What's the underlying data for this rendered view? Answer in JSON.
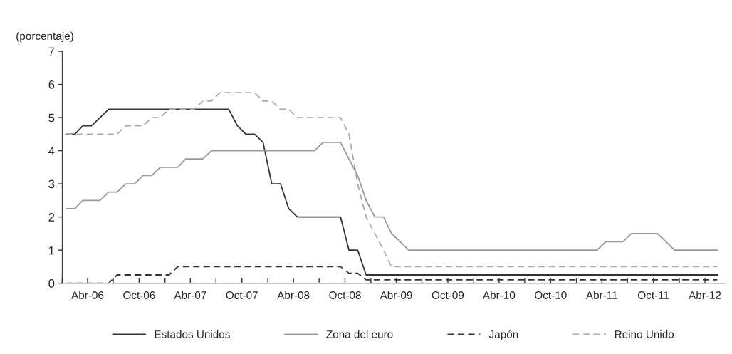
{
  "chart_data": {
    "type": "line",
    "ylabel": "(porcentaje)",
    "xlim": [
      "2006-01-01",
      "2012-06-10"
    ],
    "ylim": [
      0,
      7
    ],
    "yticks": [
      0,
      1,
      2,
      3,
      4,
      5,
      6,
      7
    ],
    "xticks": [
      {
        "value": "2006-01-01",
        "label": null
      },
      {
        "value": "2006-04-01",
        "label": "Abr-06"
      },
      {
        "value": "2006-07-01",
        "label": null
      },
      {
        "value": "2006-10-01",
        "label": "Oct-06"
      },
      {
        "value": "2007-01-01",
        "label": null
      },
      {
        "value": "2007-04-01",
        "label": "Abr-07"
      },
      {
        "value": "2007-07-01",
        "label": null
      },
      {
        "value": "2007-10-01",
        "label": "Oct-07"
      },
      {
        "value": "2008-01-01",
        "label": null
      },
      {
        "value": "2008-04-01",
        "label": "Abr-08"
      },
      {
        "value": "2008-07-01",
        "label": null
      },
      {
        "value": "2008-10-01",
        "label": "Oct-08"
      },
      {
        "value": "2009-01-01",
        "label": null
      },
      {
        "value": "2009-04-01",
        "label": "Abr-09"
      },
      {
        "value": "2009-07-01",
        "label": null
      },
      {
        "value": "2009-10-01",
        "label": "Oct-09"
      },
      {
        "value": "2010-01-01",
        "label": null
      },
      {
        "value": "2010-04-01",
        "label": "Abr-10"
      },
      {
        "value": "2010-07-01",
        "label": null
      },
      {
        "value": "2010-10-01",
        "label": "Oct-10"
      },
      {
        "value": "2011-01-01",
        "label": null
      },
      {
        "value": "2011-04-01",
        "label": "Abr-11"
      },
      {
        "value": "2011-07-01",
        "label": null
      },
      {
        "value": "2011-10-01",
        "label": "Oct-11"
      },
      {
        "value": "2012-01-01",
        "label": null
      },
      {
        "value": "2012-04-01",
        "label": "Abr-12"
      }
    ],
    "grid": false,
    "legend": "bottom",
    "marker": "none",
    "series": [
      {
        "name": "Estados Unidos",
        "color": "#333333",
        "line_style": "solid",
        "x": [
          "2006-01-15",
          "2006-02-15",
          "2006-03-15",
          "2006-04-15",
          "2006-06-15",
          "2007-08-15",
          "2007-09-15",
          "2007-10-15",
          "2007-11-15",
          "2007-12-15",
          "2008-01-15",
          "2008-02-15",
          "2008-03-15",
          "2008-04-15",
          "2008-09-15",
          "2008-10-15",
          "2008-11-15",
          "2008-12-15",
          "2012-05-15"
        ],
        "values": [
          4.5,
          4.5,
          4.75,
          4.75,
          5.25,
          5.25,
          4.75,
          4.5,
          4.5,
          4.25,
          3.0,
          3.0,
          2.25,
          2.0,
          2.0,
          1.0,
          1.0,
          0.25,
          0.25
        ]
      },
      {
        "name": "Zona del euro",
        "color": "#999999",
        "line_style": "solid",
        "x": [
          "2006-01-15",
          "2006-02-15",
          "2006-03-15",
          "2006-05-15",
          "2006-06-15",
          "2006-07-15",
          "2006-08-15",
          "2006-09-15",
          "2006-10-15",
          "2006-11-15",
          "2006-12-15",
          "2007-02-15",
          "2007-03-15",
          "2007-05-15",
          "2007-06-15",
          "2008-06-15",
          "2008-07-15",
          "2008-09-15",
          "2008-10-15",
          "2008-11-15",
          "2008-12-15",
          "2009-01-15",
          "2009-02-15",
          "2009-03-15",
          "2009-04-15",
          "2009-05-15",
          "2011-03-15",
          "2011-04-15",
          "2011-06-15",
          "2011-07-15",
          "2011-10-15",
          "2011-11-15",
          "2011-12-15",
          "2012-05-15"
        ],
        "values": [
          2.25,
          2.25,
          2.5,
          2.5,
          2.75,
          2.75,
          3.0,
          3.0,
          3.25,
          3.25,
          3.5,
          3.5,
          3.75,
          3.75,
          4.0,
          4.0,
          4.25,
          4.25,
          3.75,
          3.25,
          2.5,
          2.0,
          2.0,
          1.5,
          1.25,
          1.0,
          1.0,
          1.25,
          1.25,
          1.5,
          1.5,
          1.25,
          1.0,
          1.0
        ]
      },
      {
        "name": "Japón",
        "color": "#333333",
        "line_style": "dashed",
        "x": [
          "2006-01-15",
          "2006-06-15",
          "2006-07-15",
          "2007-01-15",
          "2007-02-15",
          "2008-09-15",
          "2008-10-15",
          "2008-11-15",
          "2008-12-15",
          "2012-05-15"
        ],
        "values": [
          0.0,
          0.0,
          0.25,
          0.25,
          0.5,
          0.5,
          0.3,
          0.3,
          0.1,
          0.1
        ]
      },
      {
        "name": "Reino Unido",
        "color": "#aaaaaa",
        "line_style": "dashed",
        "x": [
          "2006-01-15",
          "2006-07-15",
          "2006-08-15",
          "2006-10-15",
          "2006-11-15",
          "2006-12-15",
          "2007-01-15",
          "2007-04-15",
          "2007-05-15",
          "2007-06-15",
          "2007-07-15",
          "2007-11-15",
          "2007-12-15",
          "2008-01-15",
          "2008-02-15",
          "2008-03-15",
          "2008-04-15",
          "2008-09-15",
          "2008-10-15",
          "2008-11-15",
          "2008-12-15",
          "2009-01-15",
          "2009-02-15",
          "2009-03-15",
          "2012-05-15"
        ],
        "values": [
          4.5,
          4.5,
          4.75,
          4.75,
          5.0,
          5.0,
          5.25,
          5.25,
          5.5,
          5.5,
          5.75,
          5.75,
          5.5,
          5.5,
          5.25,
          5.25,
          5.0,
          5.0,
          4.5,
          3.0,
          2.0,
          1.5,
          1.0,
          0.5,
          0.5
        ]
      }
    ]
  }
}
